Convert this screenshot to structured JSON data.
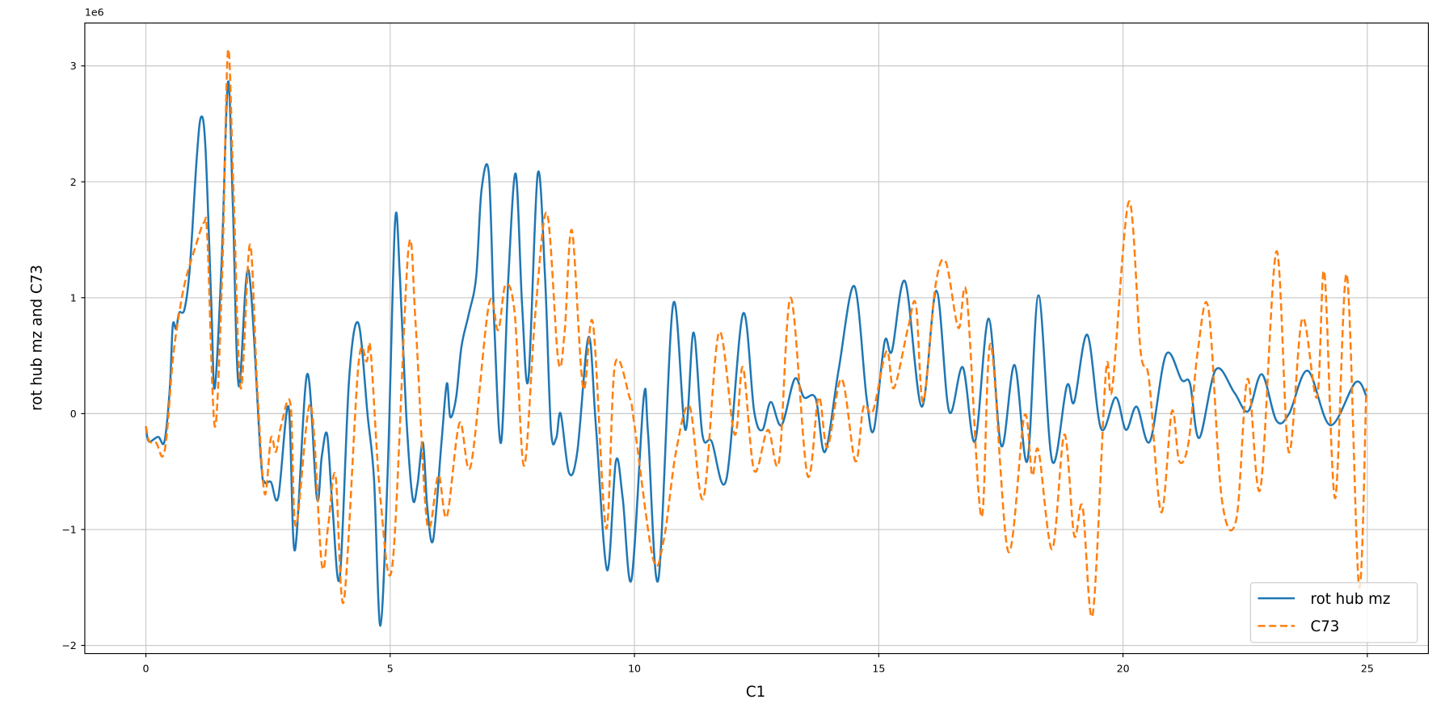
{
  "chart_data": {
    "type": "line",
    "title": "",
    "xlabel": "C1",
    "ylabel": "rot hub mz and C73",
    "y_scale_label": "1e6",
    "xlim": [
      -1.25,
      26.25
    ],
    "ylim": [
      -2.07,
      3.37
    ],
    "x_ticks": [
      0,
      5,
      10,
      15,
      20,
      25
    ],
    "x_tick_labels": [
      "0",
      "5",
      "10",
      "15",
      "20",
      "25"
    ],
    "y_ticks": [
      -2,
      -1,
      0,
      1,
      2,
      3
    ],
    "y_tick_labels": [
      "−2",
      "−1",
      "0",
      "1",
      "2",
      "3"
    ],
    "grid": true,
    "legend_position": "lower-right",
    "series": [
      {
        "name": "rot hub mz",
        "color": "#1f77b4",
        "style": "solid",
        "points": [
          [
            0,
            -0.11
          ],
          [
            0.06,
            -0.24
          ],
          [
            0.25,
            -0.2
          ],
          [
            0.38,
            -0.24
          ],
          [
            0.49,
            0.22
          ],
          [
            0.55,
            0.76
          ],
          [
            0.62,
            0.73
          ],
          [
            0.68,
            0.87
          ],
          [
            0.79,
            0.9
          ],
          [
            0.9,
            1.26
          ],
          [
            1.04,
            2.2
          ],
          [
            1.13,
            2.56
          ],
          [
            1.22,
            2.29
          ],
          [
            1.34,
            0.94
          ],
          [
            1.41,
            0.22
          ],
          [
            1.55,
            1.3
          ],
          [
            1.68,
            2.86
          ],
          [
            1.78,
            1.8
          ],
          [
            1.9,
            0.24
          ],
          [
            2.1,
            1.24
          ],
          [
            2.35,
            -0.37
          ],
          [
            2.43,
            -0.59
          ],
          [
            2.56,
            -0.59
          ],
          [
            2.71,
            -0.72
          ],
          [
            2.92,
            0.06
          ],
          [
            3.05,
            -1.18
          ],
          [
            3.3,
            0.34
          ],
          [
            3.5,
            -0.73
          ],
          [
            3.6,
            -0.37
          ],
          [
            3.71,
            -0.18
          ],
          [
            3.82,
            -0.81
          ],
          [
            3.97,
            -1.41
          ],
          [
            4.16,
            0.3
          ],
          [
            4.35,
            0.78
          ],
          [
            4.54,
            -0.02
          ],
          [
            4.67,
            -0.57
          ],
          [
            4.8,
            -1.83
          ],
          [
            4.95,
            -0.49
          ],
          [
            5.1,
            1.65
          ],
          [
            5.2,
            1.18
          ],
          [
            5.33,
            -0.02
          ],
          [
            5.46,
            -0.73
          ],
          [
            5.56,
            -0.61
          ],
          [
            5.67,
            -0.25
          ],
          [
            5.76,
            -0.81
          ],
          [
            5.88,
            -1.09
          ],
          [
            6.05,
            -0.25
          ],
          [
            6.16,
            0.26
          ],
          [
            6.23,
            -0.03
          ],
          [
            6.35,
            0.14
          ],
          [
            6.46,
            0.58
          ],
          [
            6.61,
            0.86
          ],
          [
            6.76,
            1.18
          ],
          [
            6.87,
            1.93
          ],
          [
            7.02,
            2.07
          ],
          [
            7.13,
            0.78
          ],
          [
            7.27,
            -0.25
          ],
          [
            7.42,
            1.18
          ],
          [
            7.57,
            2.07
          ],
          [
            7.7,
            0.94
          ],
          [
            7.83,
            0.3
          ],
          [
            8.02,
            2.07
          ],
          [
            8.17,
            1.18
          ],
          [
            8.29,
            -0.13
          ],
          [
            8.4,
            -0.21
          ],
          [
            8.49,
            0
          ],
          [
            8.66,
            -0.51
          ],
          [
            8.83,
            -0.33
          ],
          [
            9.06,
            0.66
          ],
          [
            9.21,
            -0.1
          ],
          [
            9.44,
            -1.35
          ],
          [
            9.62,
            -0.41
          ],
          [
            9.76,
            -0.73
          ],
          [
            9.94,
            -1.43
          ],
          [
            10.19,
            0.14
          ],
          [
            10.28,
            -0.18
          ],
          [
            10.49,
            -1.43
          ],
          [
            10.79,
            0.94
          ],
          [
            11.04,
            -0.14
          ],
          [
            11.21,
            0.7
          ],
          [
            11.39,
            -0.18
          ],
          [
            11.58,
            -0.24
          ],
          [
            11.88,
            -0.57
          ],
          [
            12.22,
            0.86
          ],
          [
            12.45,
            0.02
          ],
          [
            12.62,
            -0.14
          ],
          [
            12.79,
            0.1
          ],
          [
            13.01,
            -0.1
          ],
          [
            13.28,
            0.3
          ],
          [
            13.47,
            0.14
          ],
          [
            13.71,
            0.13
          ],
          [
            13.9,
            -0.33
          ],
          [
            14.18,
            0.38
          ],
          [
            14.5,
            1.1
          ],
          [
            14.75,
            0.14
          ],
          [
            14.9,
            -0.14
          ],
          [
            15.12,
            0.62
          ],
          [
            15.27,
            0.54
          ],
          [
            15.54,
            1.14
          ],
          [
            15.88,
            0.06
          ],
          [
            16.18,
            1.06
          ],
          [
            16.44,
            0.02
          ],
          [
            16.72,
            0.4
          ],
          [
            16.97,
            -0.24
          ],
          [
            17.25,
            0.82
          ],
          [
            17.51,
            -0.28
          ],
          [
            17.78,
            0.42
          ],
          [
            18.04,
            -0.41
          ],
          [
            18.27,
            1.02
          ],
          [
            18.55,
            -0.41
          ],
          [
            18.85,
            0.24
          ],
          [
            19.0,
            0.1
          ],
          [
            19.27,
            0.68
          ],
          [
            19.55,
            -0.13
          ],
          [
            19.85,
            0.14
          ],
          [
            20.06,
            -0.14
          ],
          [
            20.28,
            0.06
          ],
          [
            20.55,
            -0.24
          ],
          [
            20.88,
            0.51
          ],
          [
            21.2,
            0.29
          ],
          [
            21.37,
            0.26
          ],
          [
            21.56,
            -0.21
          ],
          [
            21.9,
            0.38
          ],
          [
            22.28,
            0.18
          ],
          [
            22.56,
            0.02
          ],
          [
            22.84,
            0.34
          ],
          [
            23.14,
            -0.06
          ],
          [
            23.4,
            0
          ],
          [
            23.78,
            0.37
          ],
          [
            24.24,
            -0.1
          ],
          [
            24.76,
            0.27
          ],
          [
            24.99,
            0.14
          ]
        ]
      },
      {
        "name": "C73",
        "color": "#ff7f0e",
        "style": "dashed",
        "points": [
          [
            0,
            -0.11
          ],
          [
            0.07,
            -0.24
          ],
          [
            0.21,
            -0.25
          ],
          [
            0.34,
            -0.37
          ],
          [
            0.43,
            -0.17
          ],
          [
            0.55,
            0.46
          ],
          [
            0.68,
            0.86
          ],
          [
            0.81,
            1.15
          ],
          [
            1.0,
            1.42
          ],
          [
            1.19,
            1.65
          ],
          [
            1.26,
            1.5
          ],
          [
            1.41,
            -0.11
          ],
          [
            1.56,
            1.18
          ],
          [
            1.68,
            3.13
          ],
          [
            1.79,
            1.97
          ],
          [
            1.94,
            0.22
          ],
          [
            2.13,
            1.46
          ],
          [
            2.28,
            0.22
          ],
          [
            2.43,
            -0.69
          ],
          [
            2.56,
            -0.21
          ],
          [
            2.66,
            -0.33
          ],
          [
            2.77,
            -0.1
          ],
          [
            2.96,
            0.08
          ],
          [
            3.07,
            -0.97
          ],
          [
            3.37,
            0.08
          ],
          [
            3.6,
            -1.3
          ],
          [
            3.73,
            -0.97
          ],
          [
            3.88,
            -0.53
          ],
          [
            4.05,
            -1.62
          ],
          [
            4.35,
            0.42
          ],
          [
            4.52,
            0.45
          ],
          [
            4.6,
            0.54
          ],
          [
            4.8,
            -0.73
          ],
          [
            5.05,
            -1.29
          ],
          [
            5.37,
            1.4
          ],
          [
            5.52,
            0.78
          ],
          [
            5.71,
            -0.73
          ],
          [
            5.82,
            -0.97
          ],
          [
            5.99,
            -0.53
          ],
          [
            6.16,
            -0.89
          ],
          [
            6.42,
            -0.08
          ],
          [
            6.65,
            -0.45
          ],
          [
            7.02,
            0.94
          ],
          [
            7.21,
            0.72
          ],
          [
            7.36,
            1.11
          ],
          [
            7.55,
            0.86
          ],
          [
            7.74,
            -0.45
          ],
          [
            7.97,
            0.86
          ],
          [
            8.21,
            1.73
          ],
          [
            8.44,
            0.46
          ],
          [
            8.57,
            0.7
          ],
          [
            8.72,
            1.58
          ],
          [
            8.95,
            0.22
          ],
          [
            9.15,
            0.78
          ],
          [
            9.42,
            -0.99
          ],
          [
            9.6,
            0.42
          ],
          [
            9.9,
            0.14
          ],
          [
            10.0,
            -0.1
          ],
          [
            10.38,
            -1.25
          ],
          [
            10.6,
            -1.09
          ],
          [
            10.85,
            -0.33
          ],
          [
            11.13,
            0.06
          ],
          [
            11.41,
            -0.73
          ],
          [
            11.73,
            0.7
          ],
          [
            12.05,
            -0.18
          ],
          [
            12.22,
            0.4
          ],
          [
            12.45,
            -0.49
          ],
          [
            12.73,
            -0.14
          ],
          [
            12.96,
            -0.41
          ],
          [
            13.2,
            1.0
          ],
          [
            13.54,
            -0.53
          ],
          [
            13.77,
            0.14
          ],
          [
            13.95,
            -0.29
          ],
          [
            14.24,
            0.3
          ],
          [
            14.52,
            -0.41
          ],
          [
            14.69,
            0.06
          ],
          [
            14.88,
            0.02
          ],
          [
            15.16,
            0.54
          ],
          [
            15.31,
            0.22
          ],
          [
            15.6,
            0.74
          ],
          [
            15.76,
            0.94
          ],
          [
            15.91,
            0.1
          ],
          [
            16.16,
            1.1
          ],
          [
            16.37,
            1.31
          ],
          [
            16.63,
            0.74
          ],
          [
            16.8,
            1.02
          ],
          [
            17.1,
            -0.89
          ],
          [
            17.29,
            0.6
          ],
          [
            17.65,
            -1.19
          ],
          [
            17.98,
            -0.02
          ],
          [
            18.14,
            -0.53
          ],
          [
            18.27,
            -0.32
          ],
          [
            18.55,
            -1.17
          ],
          [
            18.8,
            -0.18
          ],
          [
            19.0,
            -1.05
          ],
          [
            19.17,
            -0.8
          ],
          [
            19.38,
            -1.73
          ],
          [
            19.65,
            0.36
          ],
          [
            19.78,
            0.22
          ],
          [
            20.12,
            1.83
          ],
          [
            20.36,
            0.54
          ],
          [
            20.53,
            0.3
          ],
          [
            20.78,
            -0.85
          ],
          [
            21.0,
            0.02
          ],
          [
            21.15,
            -0.41
          ],
          [
            21.34,
            -0.25
          ],
          [
            21.53,
            0.54
          ],
          [
            21.75,
            0.9
          ],
          [
            22.02,
            -0.73
          ],
          [
            22.32,
            -0.91
          ],
          [
            22.55,
            0.3
          ],
          [
            22.81,
            -0.65
          ],
          [
            23.14,
            1.4
          ],
          [
            23.39,
            -0.33
          ],
          [
            23.67,
            0.82
          ],
          [
            23.97,
            0.14
          ],
          [
            24.12,
            1.22
          ],
          [
            24.34,
            -0.73
          ],
          [
            24.58,
            1.2
          ],
          [
            24.83,
            -1.49
          ],
          [
            24.98,
            0.22
          ]
        ]
      }
    ]
  }
}
